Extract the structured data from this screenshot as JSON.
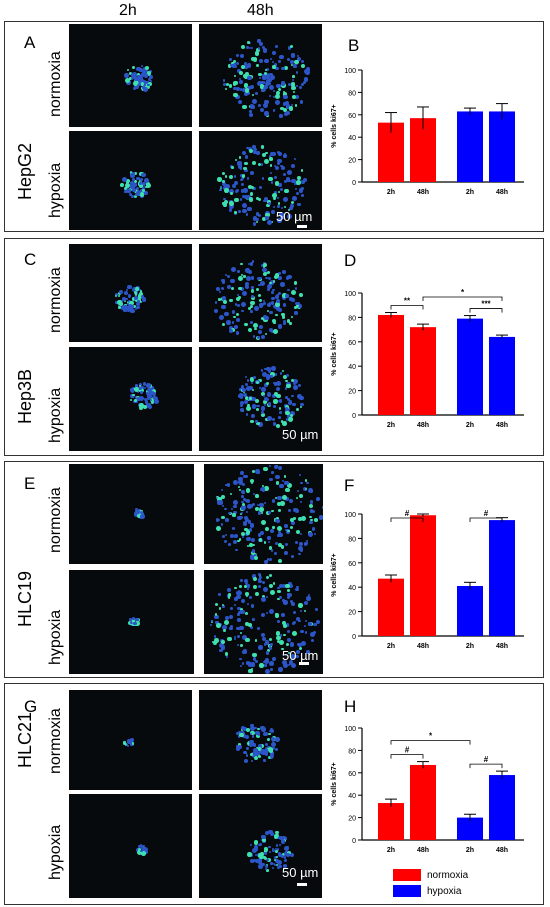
{
  "columns": [
    "2h",
    "48h"
  ],
  "scale_label": "50 µm",
  "conditions": [
    "normoxia",
    "hypoxia"
  ],
  "colors": {
    "normoxia": "#ff0000",
    "hypoxia": "#0000ff"
  },
  "legend": [
    "normoxia",
    "hypoxia"
  ],
  "panels": [
    {
      "img_letter": "A",
      "chart_letter": "B",
      "cell_line": "HepG2"
    },
    {
      "img_letter": "C",
      "chart_letter": "D",
      "cell_line": "Hep3B"
    },
    {
      "img_letter": "E",
      "chart_letter": "F",
      "cell_line": "HLC19"
    },
    {
      "img_letter": "G",
      "chart_letter": "H",
      "cell_line": "HLC21"
    }
  ],
  "chart_data": [
    {
      "type": "bar",
      "title": "",
      "ylabel": "% cells ki67+",
      "ylim": [
        0,
        100
      ],
      "yticks": [
        "0",
        "20",
        "40",
        "60",
        "80",
        "100"
      ],
      "categories": [
        "2h",
        "48h",
        "2h",
        "48h"
      ],
      "values": [
        53,
        57,
        63,
        63
      ],
      "errors": [
        9,
        10,
        3,
        7
      ],
      "bar_colors": [
        "normoxia",
        "normoxia",
        "hypoxia",
        "hypoxia"
      ],
      "annotations": []
    },
    {
      "type": "bar",
      "title": "",
      "ylabel": "% cells ki67+",
      "ylim": [
        0,
        100
      ],
      "yticks": [
        "0",
        "20",
        "40",
        "60",
        "80",
        "100"
      ],
      "categories": [
        "2h",
        "48h",
        "2h",
        "48h"
      ],
      "values": [
        82,
        72,
        79,
        64
      ],
      "errors": [
        2,
        2.5,
        2.5,
        1.5
      ],
      "bar_colors": [
        "normoxia",
        "normoxia",
        "hypoxia",
        "hypoxia"
      ],
      "annotations": [
        {
          "from": 0,
          "to": 1,
          "label": "**"
        },
        {
          "from": 2,
          "to": 3,
          "label": "***"
        },
        {
          "from": 1,
          "to": 3,
          "label": "*"
        }
      ]
    },
    {
      "type": "bar",
      "title": "",
      "ylabel": "% cells ki67+",
      "ylim": [
        0,
        100
      ],
      "yticks": [
        "0",
        "20",
        "40",
        "60",
        "80",
        "100"
      ],
      "categories": [
        "2h",
        "48h",
        "2h",
        "48h"
      ],
      "values": [
        47,
        99,
        41,
        95
      ],
      "errors": [
        3,
        1,
        3,
        2
      ],
      "bar_colors": [
        "normoxia",
        "normoxia",
        "hypoxia",
        "hypoxia"
      ],
      "annotations": [
        {
          "from": 0,
          "to": 1,
          "label": "#"
        },
        {
          "from": 2,
          "to": 3,
          "label": "#"
        }
      ]
    },
    {
      "type": "bar",
      "title": "",
      "ylabel": "% cells ki67+",
      "ylim": [
        0,
        100
      ],
      "yticks": [
        "0",
        "20",
        "40",
        "60",
        "80",
        "100"
      ],
      "categories": [
        "2h",
        "48h",
        "2h",
        "48h"
      ],
      "values": [
        33,
        67,
        20,
        58
      ],
      "errors": [
        3.5,
        3,
        3,
        3.5
      ],
      "bar_colors": [
        "normoxia",
        "normoxia",
        "hypoxia",
        "hypoxia"
      ],
      "annotations": [
        {
          "from": 0,
          "to": 1,
          "label": "#"
        },
        {
          "from": 2,
          "to": 3,
          "label": "#"
        },
        {
          "from": 0,
          "to": 2,
          "label": "*"
        }
      ]
    }
  ]
}
